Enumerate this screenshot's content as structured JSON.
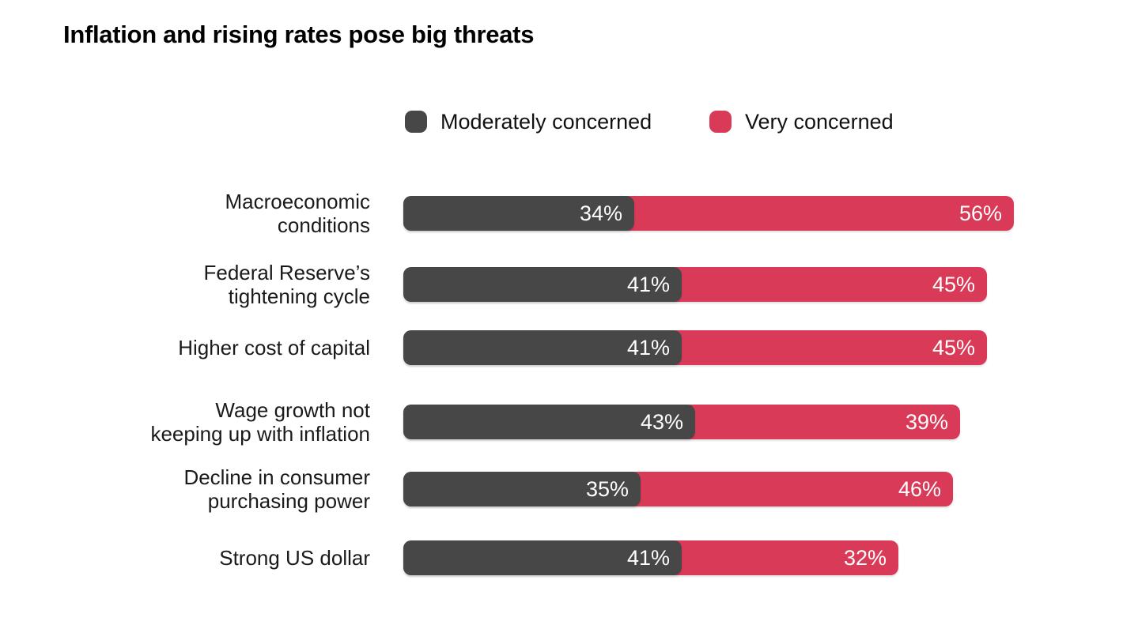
{
  "title": "Inflation and rising rates pose big threats",
  "colors": {
    "moderately": "#474747",
    "very": "#D93A58",
    "value_text": "#FFFFFF",
    "background": "#FFFFFF",
    "title_text": "#000000",
    "label_text": "#1A1A1A"
  },
  "legend": {
    "items": [
      {
        "label": "Moderately concerned",
        "color": "#474747"
      },
      {
        "label": "Very concerned",
        "color": "#D93A58"
      }
    ]
  },
  "chart_data": {
    "type": "bar",
    "orientation": "horizontal",
    "stacked": true,
    "title": "Inflation and rising rates pose big threats",
    "unit": "%",
    "xlim": [
      0,
      100
    ],
    "grid": false,
    "legend_position": "top",
    "categories": [
      "Macroeconomic conditions",
      "Federal Reserve’s tightening cycle",
      "Higher cost of capital",
      "Wage growth not keeping up with inflation",
      "Decline in consumer purchasing power",
      "Strong US dollar"
    ],
    "series": [
      {
        "name": "Moderately concerned",
        "color": "#474747",
        "values": [
          34,
          41,
          41,
          43,
          35,
          41
        ]
      },
      {
        "name": "Very concerned",
        "color": "#D93A58",
        "values": [
          56,
          45,
          45,
          39,
          46,
          32
        ]
      }
    ],
    "rows": [
      {
        "label_lines": [
          "Macroeconomic",
          "conditions"
        ],
        "moderately": 34,
        "very": 56,
        "total": 90,
        "moderately_text": "34%",
        "very_text": "56%"
      },
      {
        "label_lines": [
          "Federal Reserve’s",
          "tightening cycle"
        ],
        "moderately": 41,
        "very": 45,
        "total": 86,
        "moderately_text": "41%",
        "very_text": "45%"
      },
      {
        "label_lines": [
          "Higher cost of capital"
        ],
        "moderately": 41,
        "very": 45,
        "total": 86,
        "moderately_text": "41%",
        "very_text": "45%"
      },
      {
        "label_lines": [
          "Wage growth not",
          "keeping up with inflation"
        ],
        "moderately": 43,
        "very": 39,
        "total": 82,
        "moderately_text": "43%",
        "very_text": "39%"
      },
      {
        "label_lines": [
          "Decline in consumer",
          "purchasing power"
        ],
        "moderately": 35,
        "very": 46,
        "total": 81,
        "moderately_text": "35%",
        "very_text": "46%"
      },
      {
        "label_lines": [
          "Strong US dollar"
        ],
        "moderately": 41,
        "very": 32,
        "total": 73,
        "moderately_text": "41%",
        "very_text": "32%"
      }
    ]
  }
}
